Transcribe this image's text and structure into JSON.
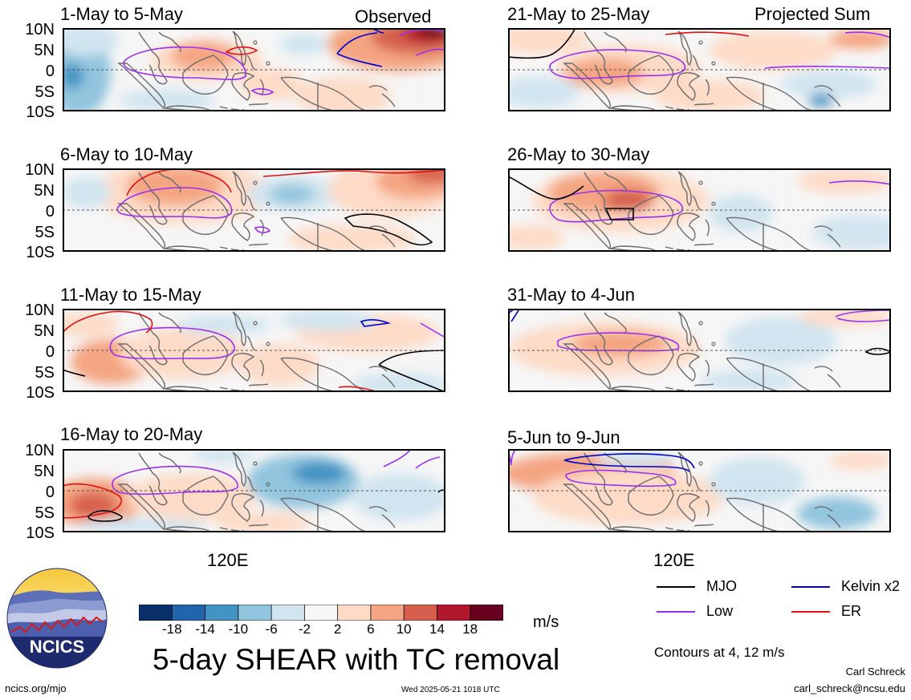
{
  "left_column": [
    {
      "title": "1-May to 5-May",
      "corner_label": "Observed"
    },
    {
      "title": "6-May to 10-May",
      "corner_label": ""
    },
    {
      "title": "11-May to 15-May",
      "corner_label": ""
    },
    {
      "title": "16-May to 20-May",
      "corner_label": ""
    }
  ],
  "right_column": [
    {
      "title": "21-May to 25-May",
      "corner_label": "Projected Sum"
    },
    {
      "title": "26-May to 30-May",
      "corner_label": ""
    },
    {
      "title": "31-May to 4-Jun",
      "corner_label": ""
    },
    {
      "title": "5-Jun to 9-Jun",
      "corner_label": ""
    }
  ],
  "lat_labels": [
    "10N",
    "5N",
    "0",
    "5S",
    "10S"
  ],
  "lon_label": "120E",
  "legend": {
    "mjo": {
      "label": "MJO",
      "color": "#000000"
    },
    "kelvin": {
      "label": "Kelvin x2",
      "color": "#0000cc"
    },
    "low": {
      "label": "Low",
      "color": "#9a2ff0"
    },
    "er": {
      "label": "ER",
      "color": "#e01010"
    }
  },
  "colorbar": {
    "units": "m/s",
    "ticks": [
      "-18",
      "-14",
      "-10",
      "-6",
      "-2",
      "2",
      "6",
      "10",
      "14",
      "18"
    ],
    "colors": [
      "#08306b",
      "#2166ac",
      "#4393c3",
      "#92c5de",
      "#d1e5f0",
      "#f7f7f7",
      "#fddbc7",
      "#f4a582",
      "#d6604d",
      "#b2182b",
      "#67001f"
    ]
  },
  "main_title": "5-day SHEAR with TC removal",
  "contours_note": "Contours at 4, 12 m/s",
  "logo_text": "NCICS",
  "url": "ncics.org/mjo",
  "timestamp": "Wed 2025-05-21 1018 UTC",
  "author": "Carl Schreck",
  "email": "carl_schreck@ncsu.edu"
}
